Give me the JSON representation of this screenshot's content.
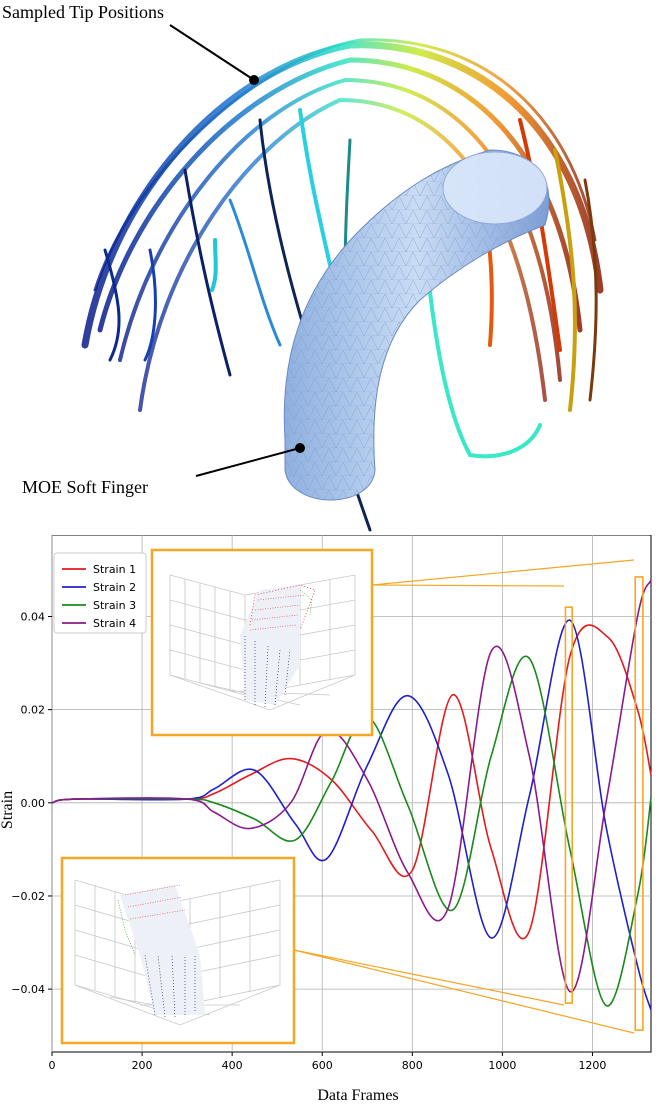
{
  "illustration": {
    "annotations": [
      {
        "label": "Sampled Tip Positions"
      },
      {
        "label": "MOE Soft Finger"
      }
    ]
  },
  "chart_data": {
    "type": "line",
    "xlabel": "Data Frames",
    "ylabel": "Strain",
    "xlim": [
      0,
      1330
    ],
    "ylim": [
      -0.0535,
      0.0575
    ],
    "x_ticks": [
      0,
      200,
      400,
      600,
      800,
      1000,
      1200
    ],
    "y_ticks": [
      -0.04,
      -0.02,
      0.0,
      0.02,
      0.04
    ],
    "x_tick_labels": [
      "0",
      "200",
      "400",
      "600",
      "800",
      "1000",
      "1200"
    ],
    "y_tick_labels": [
      "−0.04",
      "−0.02",
      "0.00",
      "0.02",
      "0.04"
    ],
    "grid": true,
    "legend_position": "top-left",
    "colors": {
      "Strain 1": "#e41a1c",
      "Strain 2": "#1f1fd0",
      "Strain 3": "#1a8a1a",
      "Strain 4": "#8b1a8b",
      "highlight": "#f5a623"
    },
    "series": [
      {
        "name": "Strain 1",
        "color": "#e41a1c",
        "points": [
          [
            0,
            0.0
          ],
          [
            50,
            0.0008
          ],
          [
            300,
            0.0008
          ],
          [
            360,
            0.002
          ],
          [
            440,
            0.006
          ],
          [
            530,
            0.0095
          ],
          [
            620,
            0.005
          ],
          [
            710,
            -0.006
          ],
          [
            800,
            -0.0145
          ],
          [
            890,
            0.0232
          ],
          [
            975,
            -0.0098
          ],
          [
            1060,
            -0.0275
          ],
          [
            1150,
            0.0315
          ],
          [
            1235,
            0.0355
          ],
          [
            1300,
            0.02
          ],
          [
            1330,
            0.006
          ]
        ]
      },
      {
        "name": "Strain 2",
        "color": "#1f1fd0",
        "points": [
          [
            0,
            0.0
          ],
          [
            50,
            0.0008
          ],
          [
            300,
            0.0008
          ],
          [
            360,
            0.003
          ],
          [
            450,
            0.007
          ],
          [
            540,
            -0.0045
          ],
          [
            610,
            -0.012
          ],
          [
            700,
            0.008
          ],
          [
            790,
            0.023
          ],
          [
            880,
            0.006
          ],
          [
            975,
            -0.029
          ],
          [
            1060,
            0.0015
          ],
          [
            1150,
            0.0392
          ],
          [
            1230,
            -0.005
          ],
          [
            1300,
            -0.035
          ],
          [
            1330,
            -0.0445
          ]
        ]
      },
      {
        "name": "Strain 3",
        "color": "#1a8a1a",
        "points": [
          [
            0,
            0.0
          ],
          [
            50,
            0.0008
          ],
          [
            300,
            0.0008
          ],
          [
            360,
            0.0
          ],
          [
            450,
            -0.0035
          ],
          [
            540,
            -0.008
          ],
          [
            620,
            0.0045
          ],
          [
            700,
            0.0185
          ],
          [
            790,
            -0.0005
          ],
          [
            890,
            -0.023
          ],
          [
            975,
            0.01
          ],
          [
            1060,
            0.031
          ],
          [
            1150,
            -0.01
          ],
          [
            1230,
            -0.0435
          ],
          [
            1300,
            -0.02
          ],
          [
            1330,
            0.001
          ]
        ]
      },
      {
        "name": "Strain 4",
        "color": "#8b1a8b",
        "points": [
          [
            0,
            0.0
          ],
          [
            50,
            0.0008
          ],
          [
            300,
            0.0008
          ],
          [
            360,
            -0.002
          ],
          [
            440,
            -0.0055
          ],
          [
            530,
            0.0
          ],
          [
            610,
            0.0155
          ],
          [
            700,
            0.005
          ],
          [
            790,
            -0.015
          ],
          [
            880,
            -0.0225
          ],
          [
            975,
            0.0325
          ],
          [
            1060,
            0.01
          ],
          [
            1150,
            -0.0405
          ],
          [
            1230,
            0.0
          ],
          [
            1300,
            0.04
          ],
          [
            1330,
            0.0478
          ]
        ]
      }
    ],
    "highlight_rectangles": [
      {
        "x_range": [
          1140,
          1155
        ],
        "y_range": [
          -0.043,
          0.042
        ]
      },
      {
        "x_range": [
          1295,
          1312
        ],
        "y_range": [
          -0.0488,
          0.0485
        ]
      }
    ]
  }
}
